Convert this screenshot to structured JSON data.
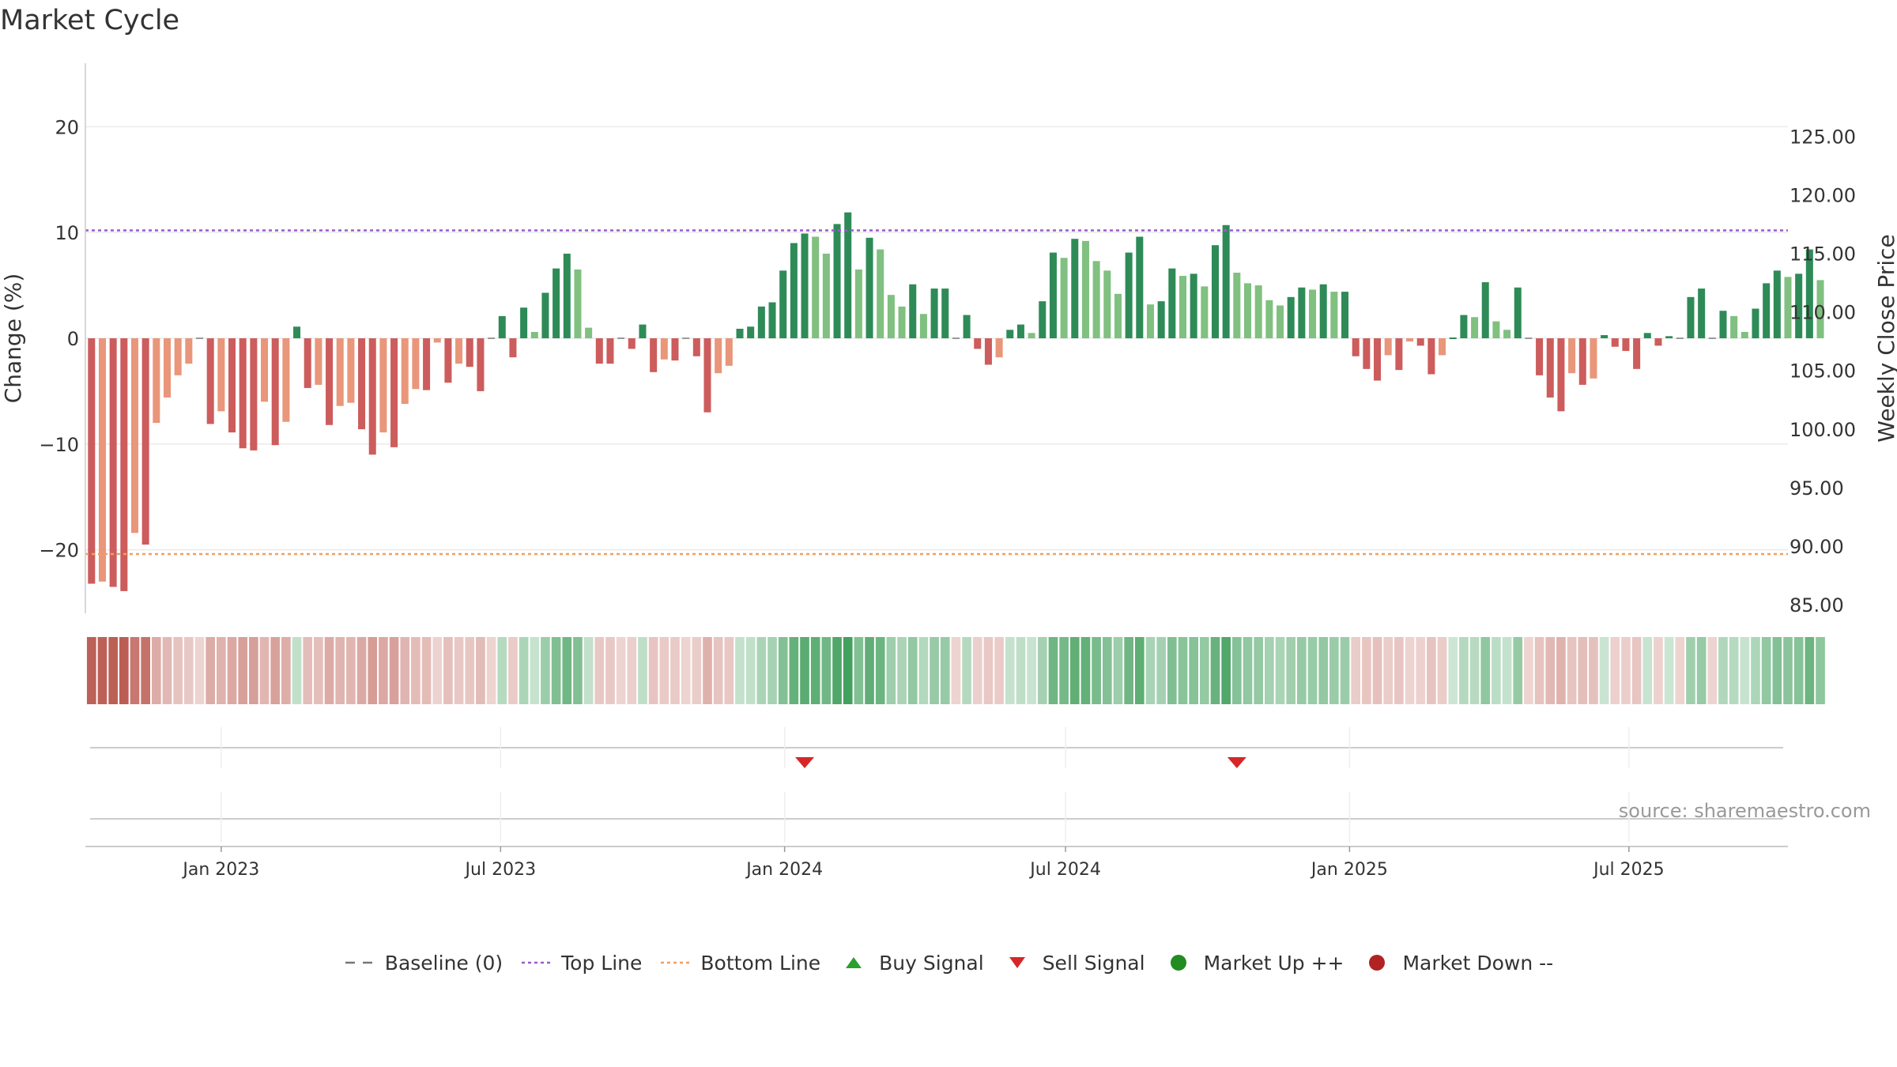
{
  "chart_data": {
    "type": "bar",
    "title": "Market Cycle",
    "ylabel_left": "Change (%)",
    "ylabel_right": "Weekly Close Price",
    "ylim_left": [
      -26,
      26
    ],
    "yticks_left": [
      {
        "value": 20,
        "label": "20"
      },
      {
        "value": 10,
        "label": "10"
      },
      {
        "value": 0,
        "label": "0"
      },
      {
        "value": -10,
        "label": "−10"
      },
      {
        "value": -20,
        "label": "−20"
      }
    ],
    "ylim_right": [
      84.25,
      131.25
    ],
    "yticks_right": [
      125,
      120,
      115,
      110,
      105,
      100,
      95,
      90,
      85
    ],
    "yticks_right_labels": [
      "125.00",
      "120.00",
      "115.00",
      "110.00",
      "105.00",
      "100.00",
      "95.00",
      "90.00",
      "85.00"
    ],
    "top_line": 10.2,
    "bottom_line": -20.4,
    "xlim": [
      "2022-10-05",
      "2025-10-12"
    ],
    "xticks": [
      {
        "date": "2023-01-01",
        "label": "Jan 2023"
      },
      {
        "date": "2023-07-01",
        "label": "Jul 2023"
      },
      {
        "date": "2024-01-01",
        "label": "Jan 2024"
      },
      {
        "date": "2024-07-01",
        "label": "Jul 2024"
      },
      {
        "date": "2025-01-01",
        "label": "Jan 2025"
      },
      {
        "date": "2025-07-01",
        "label": "Jul 2025"
      }
    ],
    "start_week": "2022-10-09",
    "values": [
      -23.2,
      -23,
      -23.5,
      -23.9,
      -18.4,
      -19.5,
      -8,
      -5.6,
      -3.5,
      -2.4,
      -0.1,
      -8.1,
      -6.9,
      -8.9,
      -10.4,
      -10.6,
      -6,
      -10.1,
      -7.9,
      1.1,
      -4.7,
      -4.4,
      -8.2,
      -6.4,
      -6.1,
      -8.6,
      -11,
      -8.9,
      -10.3,
      -6.2,
      -4.8,
      -4.9,
      -0.4,
      -4.2,
      -2.4,
      -2.7,
      -5,
      -0.1,
      2.1,
      -1.8,
      2.9,
      0.6,
      4.3,
      6.6,
      8,
      6.5,
      1,
      -2.4,
      -2.4,
      -0.1,
      -1,
      1.3,
      -3.2,
      -2,
      -2.1,
      -0.1,
      -1.7,
      -7,
      -3.3,
      -2.6,
      0.9,
      1.1,
      3,
      3.4,
      6.4,
      9,
      9.9,
      9.6,
      8,
      10.8,
      11.9,
      6.5,
      9.5,
      8.4,
      4.1,
      3,
      5.1,
      2.3,
      4.7,
      4.7,
      -0.1,
      2.2,
      -1,
      -2.5,
      -1.8,
      0.8,
      1.3,
      0.5,
      3.5,
      8.1,
      7.6,
      9.4,
      9.2,
      7.3,
      6.4,
      4.2,
      8.1,
      9.6,
      3.2,
      3.5,
      6.6,
      5.9,
      6.1,
      4.9,
      8.8,
      10.7,
      6.2,
      5.2,
      5,
      3.6,
      3.1,
      3.9,
      4.8,
      4.6,
      5.1,
      4.4,
      4.4,
      -1.7,
      -2.9,
      -4,
      -1.6,
      -3,
      -0.3,
      -0.7,
      -3.4,
      -1.6,
      0.1,
      2.2,
      2,
      5.3,
      1.6,
      0.8,
      4.8,
      -0.1,
      -3.5,
      -5.6,
      -6.9,
      -3.3,
      -4.4,
      -3.8,
      0.3,
      -0.8,
      -1.2,
      -2.9,
      0.5,
      -0.7,
      0.2,
      -0.1,
      3.9,
      4.7,
      -0.1,
      2.6,
      2.1,
      0.6,
      2.8,
      5.2,
      6.4,
      5.8,
      6.1,
      8.4,
      5.5
    ],
    "sell_signals": [
      "2024-01-14",
      "2024-10-20"
    ],
    "colors": {
      "up_strong": "#2e8b57",
      "up_weak": "#80c080",
      "down_strong": "#cd5c5c",
      "down_weak": "#e9967a",
      "top_line": "#9b59d0",
      "bottom_line": "#f0a060",
      "sell_signal": "#d62728",
      "buy_signal": "#2ca02c",
      "market_up": "#228b22",
      "market_down": "#b22222"
    },
    "legend_placement": "bottom-center",
    "legend": [
      {
        "id": "baseline",
        "label": "Baseline (0)"
      },
      {
        "id": "top",
        "label": "Top Line"
      },
      {
        "id": "bottom",
        "label": "Bottom Line"
      },
      {
        "id": "buy",
        "label": "Buy Signal"
      },
      {
        "id": "sell",
        "label": "Sell Signal"
      },
      {
        "id": "up",
        "label": "Market Up ++"
      },
      {
        "id": "down",
        "label": "Market Down --"
      }
    ],
    "source_note": "source: sharemaestro.com"
  }
}
